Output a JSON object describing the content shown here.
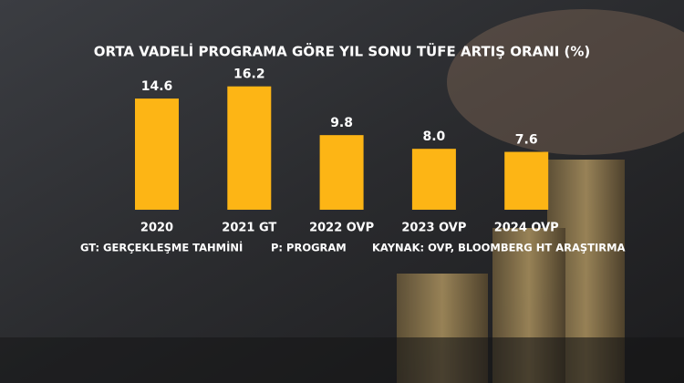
{
  "chart_data": {
    "type": "bar",
    "title": "ORTA VADELİ PROGRAMA GÖRE YIL SONU TÜFE ARTIŞ ORANI (%)",
    "categories": [
      "2020",
      "2021 GT",
      "2022 OVP",
      "2023 OVP",
      "2024 OVP"
    ],
    "values": [
      14.6,
      16.2,
      9.8,
      8,
      7.6
    ],
    "value_labels": [
      "14.6",
      "16.2",
      "9.8",
      "8.0",
      "7.6"
    ],
    "color": "#fdb515",
    "notes": [
      "GT: GERÇEKLEŞME TAHMİNİ",
      "P: PROGRAM",
      "KAYNAK: OVP, BLOOMBERG HT ARAŞTIRMA"
    ]
  }
}
